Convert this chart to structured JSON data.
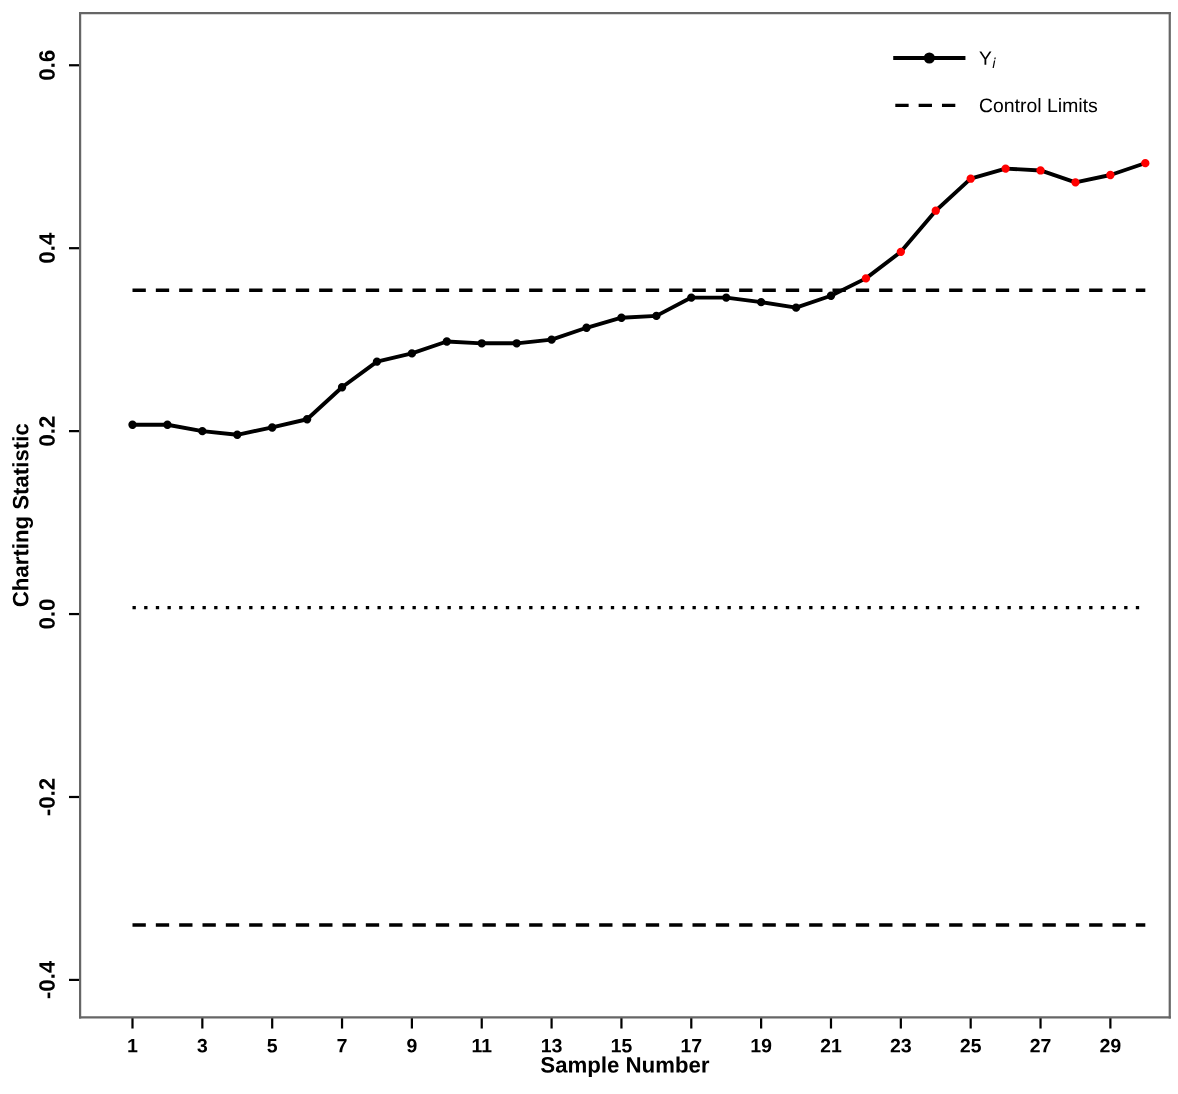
{
  "chart_data": {
    "type": "line",
    "xlabel": "Sample Number",
    "ylabel": "Charting Statistic",
    "x": [
      1,
      2,
      3,
      4,
      5,
      6,
      7,
      8,
      9,
      10,
      11,
      12,
      13,
      14,
      15,
      16,
      17,
      18,
      19,
      20,
      21,
      22,
      23,
      24,
      25,
      26,
      27,
      28,
      29,
      30
    ],
    "series": [
      {
        "name": "Y$_{i}$",
        "color": "#000000",
        "marker": "circle",
        "line_style": "solid",
        "colors": [
          "#000000",
          "#000000",
          "#000000",
          "#000000",
          "#000000",
          "#000000",
          "#000000",
          "#000000",
          "#000000",
          "#000000",
          "#000000",
          "#000000",
          "#000000",
          "#000000",
          "#000000",
          "#000000",
          "#000000",
          "#000000",
          "#000000",
          "#000000",
          "#000000",
          "#ff0000",
          "#ff0000",
          "#ff0000",
          "#ff0000",
          "#ff0000",
          "#ff0000",
          "#ff0000",
          "#ff0000",
          "#ff0000"
        ],
        "values": [
          0.207,
          0.207,
          0.2,
          0.196,
          0.204,
          0.213,
          0.248,
          0.276,
          0.285,
          0.298,
          0.296,
          0.296,
          0.3,
          0.313,
          0.324,
          0.326,
          0.346,
          0.346,
          0.341,
          0.335,
          0.348,
          0.367,
          0.396,
          0.441,
          0.476,
          0.487,
          0.485,
          0.472,
          0.48,
          0.493
        ]
      }
    ],
    "ref_lines": [
      {
        "axis": "y",
        "value": 0.354,
        "label": "Control Limits",
        "line_style": "dashed",
        "color": "#000000"
      },
      {
        "axis": "y",
        "value": 0.007,
        "line_style": "dotted",
        "color": "#000000"
      },
      {
        "axis": "y",
        "value": -0.34,
        "line_style": "dashed",
        "color": "#000000"
      }
    ],
    "xlim": [
      -0.5,
      30.7
    ],
    "ylim": [
      -0.441,
      0.657
    ],
    "xticks": [
      1,
      3,
      5,
      7,
      9,
      11,
      13,
      15,
      17,
      19,
      21,
      23,
      25,
      27,
      29
    ],
    "yticks": [
      {
        "value": -0.4,
        "label": "-0.4"
      },
      {
        "value": -0.2,
        "label": "-0.2"
      },
      {
        "value": 0.0,
        "label": "0.0"
      },
      {
        "value": 0.2,
        "label": "0.2"
      },
      {
        "value": 0.4,
        "label": "0.4"
      },
      {
        "value": 0.6,
        "label": "0.6"
      }
    ],
    "grid": false,
    "legend": "top right"
  }
}
